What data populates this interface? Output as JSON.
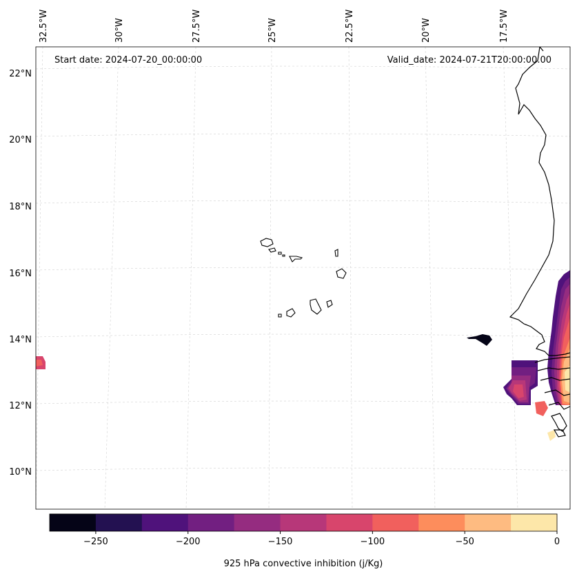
{
  "header": {
    "start_date": "Start date: 2024-07-20_00:00:00",
    "valid_date": "Valid_date: 2024-07-21T20:00:00.00"
  },
  "axes": {
    "lon_labels": [
      "32.5°W",
      "30°W",
      "27.5°W",
      "25°W",
      "22.5°W",
      "20°W",
      "17.5°W"
    ],
    "lat_labels": [
      "22°N",
      "20°N",
      "18°N",
      "16°N",
      "14°N",
      "12°N",
      "10°N"
    ]
  },
  "colorbar": {
    "label": "925 hPa convective inhibition (j/Kg)",
    "tick_labels": [
      "−250",
      "−200",
      "−150",
      "−100",
      "−50",
      "0"
    ],
    "range": [
      -275,
      0
    ],
    "colors": [
      "#050417",
      "#231151",
      "#4f127b",
      "#721f81",
      "#952c80",
      "#b73779",
      "#d8456c",
      "#f1605d",
      "#fd8d5c",
      "#febb81",
      "#fde7a9"
    ]
  },
  "map_features": {
    "region": "Cabo Verde islands and West African coast (Senegal / Gambia / Guinea-Bissau)"
  }
}
